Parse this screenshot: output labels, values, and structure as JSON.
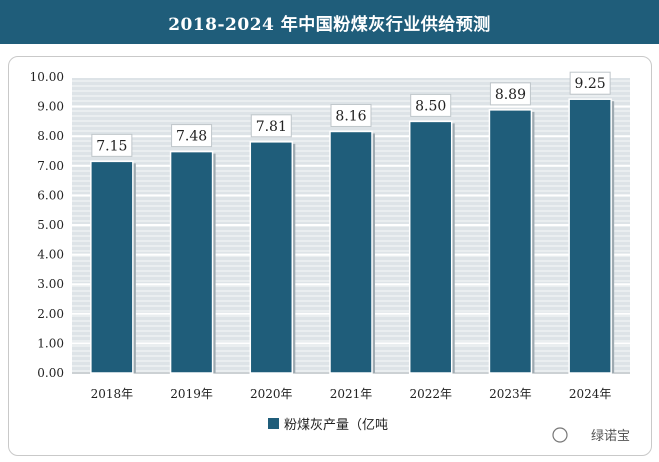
{
  "title": "2018-2024 年中国粉煤灰行业供给预测",
  "watermark": "绿诺宝",
  "colors": {
    "title_bg": "#1f5d7a",
    "bar": "#1f5d7a",
    "plot_bg": "#dde3e7",
    "grid": "#ffffff"
  },
  "chart_data": {
    "type": "bar",
    "categories": [
      "2018年",
      "2019年",
      "2020年",
      "2021年",
      "2022年",
      "2023年",
      "2024年"
    ],
    "series": [
      {
        "name": "粉煤灰产量（亿吨",
        "values": [
          7.15,
          7.48,
          7.81,
          8.16,
          8.5,
          8.89,
          9.25
        ]
      }
    ],
    "ylim": [
      0,
      10
    ],
    "yticks": [
      "0.00",
      "1.00",
      "2.00",
      "3.00",
      "4.00",
      "5.00",
      "6.00",
      "7.00",
      "8.00",
      "9.00",
      "10.00"
    ],
    "grid": true,
    "legend_position": "bottom-center"
  }
}
